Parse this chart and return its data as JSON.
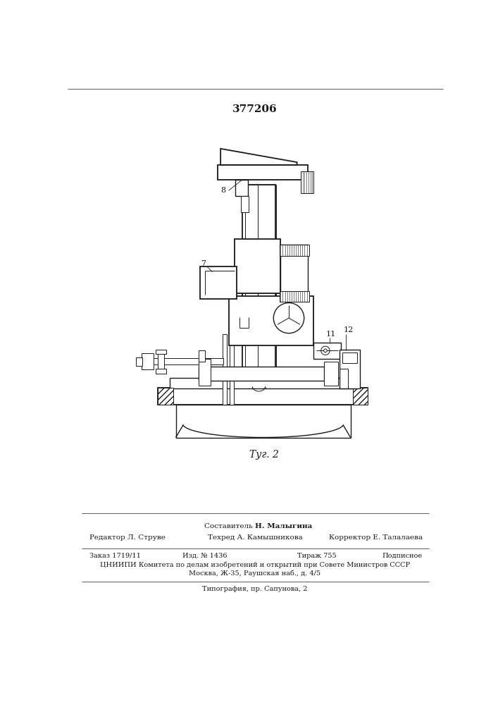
{
  "patent_number": "377206",
  "fig_label": "Τуг. 2",
  "bg_color": "#ffffff",
  "text_color": "#1a1a1a",
  "footer": {
    "composer_bold": "Н. Малыгина",
    "composer_label": "Составитель",
    "editor_label": "Редактор",
    "editor_name": "Л. Струве",
    "techred_label": "Техред",
    "techred_name": "А. Камышникова",
    "corrector_label": "Корректор",
    "corrector_name": "Е. Талалаева",
    "order": "Заказ 1719/11",
    "izd": "Изд. № 1436",
    "tirazh": "Тираж 755",
    "podpisnoe": "Подписное",
    "cniipи": "ЦНИИПИ Комитета по делам изобретений и открытий при Совете Министров СССР",
    "address": "Москва, Ж-35, Раушская наб., д. 4/5",
    "tipografia": "Типография, пр. Сапунова, 2"
  }
}
